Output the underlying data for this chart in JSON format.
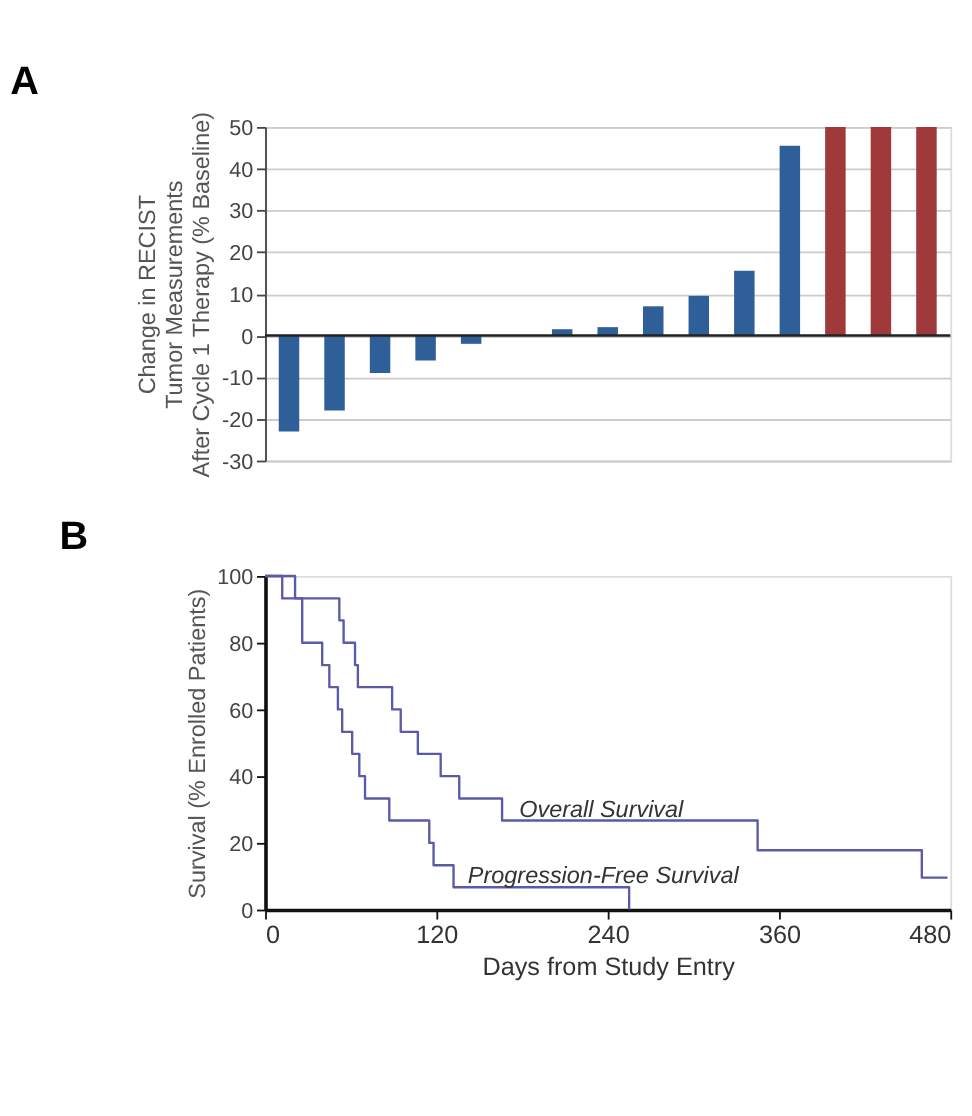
{
  "chart_data": [
    {
      "type": "bar",
      "title": "A",
      "ylabel": "Change in RECIST\nTumor Measurements\nAfter Cycle 1 Therapy (% Baseline)",
      "categories": [
        null,
        null,
        null,
        null,
        null,
        null,
        null,
        null,
        null,
        null,
        null,
        null,
        null,
        null,
        null
      ],
      "values": [
        -23,
        -18,
        -9,
        -6,
        -2,
        null,
        1.5,
        2,
        7,
        9.5,
        15.5,
        45.5,
        50,
        50,
        50
      ],
      "colors": [
        "#2f5f98",
        "#2f5f98",
        "#2f5f98",
        "#2f5f98",
        "#2f5f98",
        "#2f5f98",
        "#2f5f98",
        "#2f5f98",
        "#2f5f98",
        "#2f5f98",
        "#2f5f98",
        "#2f5f98",
        "#a03a3a",
        "#a03a3a",
        "#a03a3a"
      ],
      "ylim": [
        -30,
        50
      ],
      "yticks": [
        -30,
        -20,
        -10,
        0,
        10,
        20,
        30,
        40,
        50
      ],
      "grid": "y",
      "tick_labels": "y"
    },
    {
      "type": "step",
      "title": "B",
      "xlabel": "Days from Study Entry",
      "ylabel": "Survival (% Enrolled Patients)",
      "series": [
        {
          "color": "#5a5aa8",
          "x": [
            0,
            21,
            52,
            55,
            63,
            65,
            89,
            95,
            107,
            123,
            136,
            166,
            345,
            460,
            478
          ],
          "values": [
            100,
            93.3,
            86.7,
            80,
            73.3,
            66.7,
            60,
            53.3,
            46.7,
            40,
            33.3,
            26.7,
            17.8,
            9.6,
            9.6
          ]
        },
        {
          "color": "#5a5aa8",
          "x": [
            0,
            12,
            26,
            40,
            45,
            51,
            54,
            61,
            66,
            70,
            87,
            115,
            118,
            132,
            255
          ],
          "values": [
            100,
            93.3,
            80,
            73.3,
            66.7,
            60,
            53.3,
            46.7,
            40,
            33.3,
            26.7,
            20,
            13.3,
            6.7,
            0
          ]
        }
      ],
      "annotations": [
        {
          "text": "Overall Survival",
          "x": 178,
          "y": 30
        },
        {
          "text": "Progression-Free Survival",
          "x": 142,
          "y": 10
        }
      ],
      "xlim": [
        0,
        480
      ],
      "xticks": [
        0,
        120,
        240,
        360,
        480
      ],
      "ylim": [
        0,
        100
      ],
      "yticks": [
        0,
        20,
        40,
        60,
        80,
        100
      ],
      "grid": false
    }
  ]
}
